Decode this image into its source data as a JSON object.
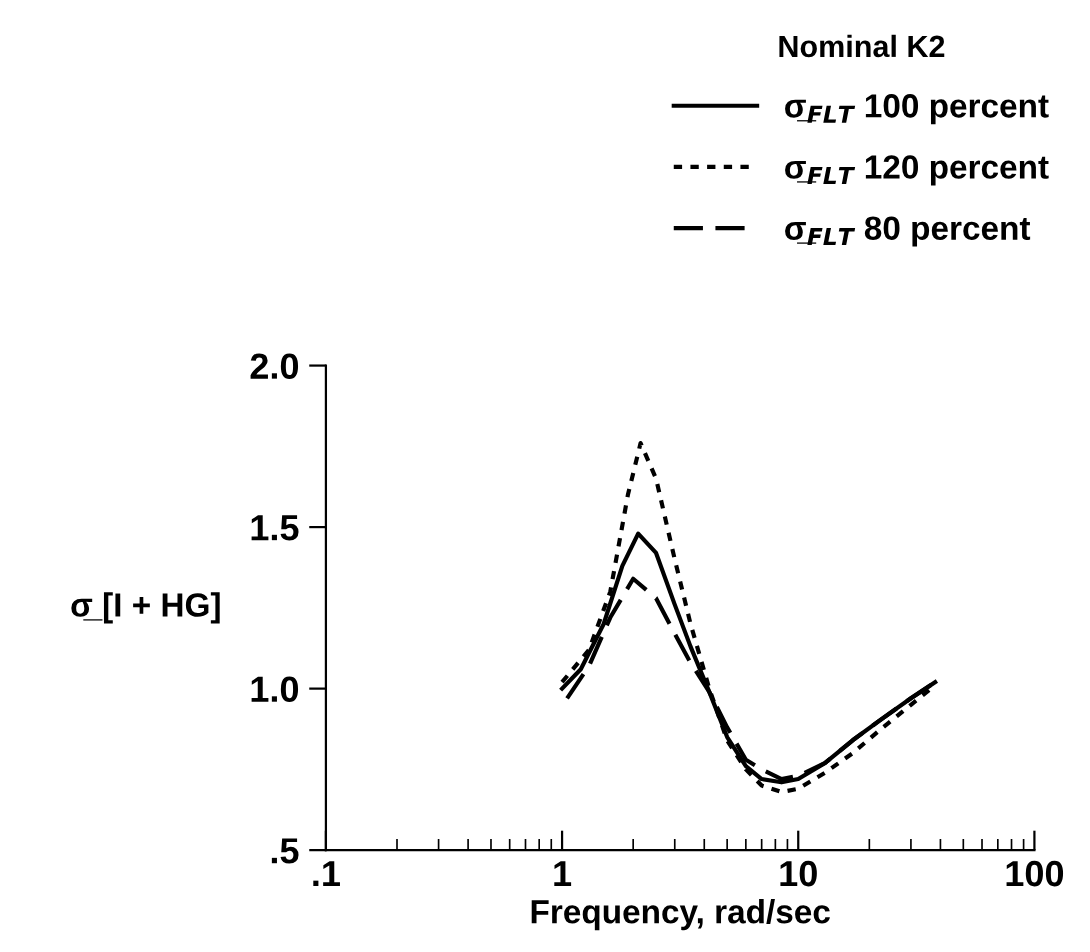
{
  "chart_data": {
    "type": "line",
    "xlabel": "Frequency, rad/sec",
    "ylabel": "σ̲ [I + HG]",
    "legend_title": "Nominal K2",
    "legend": "top right",
    "log": "x",
    "grid": false,
    "xlim": [
      0.1,
      100
    ],
    "xticks": [
      {
        "value": 0.1,
        "label": ".1"
      },
      1,
      10,
      100
    ],
    "ylim": [
      0.5,
      2.0
    ],
    "yticks": [
      {
        "value": 0.5,
        "label": ".5"
      },
      {
        "value": 1.0,
        "label": "1.0"
      },
      {
        "value": 1.5,
        "label": "1.5"
      },
      {
        "value": 2.0,
        "label": "2.0"
      }
    ],
    "series": [
      {
        "name": "σ̲$_{FLT}$ 100 percent",
        "color": "#000000",
        "line_style": "solid",
        "x": [
          1.0,
          1.2,
          1.5,
          1.8,
          2.1,
          2.5,
          3.0,
          3.5,
          4.2,
          5,
          6,
          7,
          8.5,
          10,
          13,
          17,
          22,
          30,
          38
        ],
        "values": [
          1.0,
          1.06,
          1.2,
          1.38,
          1.48,
          1.42,
          1.26,
          1.13,
          0.99,
          0.85,
          0.76,
          0.72,
          0.71,
          0.72,
          0.77,
          0.84,
          0.9,
          0.97,
          1.02
        ]
      },
      {
        "name": "σ̲$_{FLT}$ 120 percent",
        "color": "#000000",
        "line_style": "dotted",
        "x": [
          1.0,
          1.3,
          1.6,
          1.9,
          2.15,
          2.5,
          3.0,
          3.5,
          4.2,
          5,
          6,
          7,
          8.5,
          10,
          13,
          17,
          22,
          30,
          38
        ],
        "values": [
          1.02,
          1.12,
          1.3,
          1.6,
          1.76,
          1.65,
          1.4,
          1.2,
          1.0,
          0.84,
          0.75,
          0.7,
          0.68,
          0.69,
          0.74,
          0.8,
          0.87,
          0.95,
          1.01
        ]
      },
      {
        "name": "σ̲$_{FLT}$ 80 percent",
        "color": "#000000",
        "line_style": "dashed",
        "x": [
          1.05,
          1.3,
          1.6,
          2.0,
          2.5,
          3.0,
          3.5,
          4.2,
          5,
          6,
          7,
          8.5,
          10,
          13,
          17,
          22,
          30,
          38
        ],
        "values": [
          0.97,
          1.07,
          1.22,
          1.34,
          1.28,
          1.17,
          1.08,
          0.99,
          0.88,
          0.78,
          0.75,
          0.72,
          0.73,
          0.77,
          0.84,
          0.9,
          0.97,
          1.02
        ]
      }
    ]
  }
}
